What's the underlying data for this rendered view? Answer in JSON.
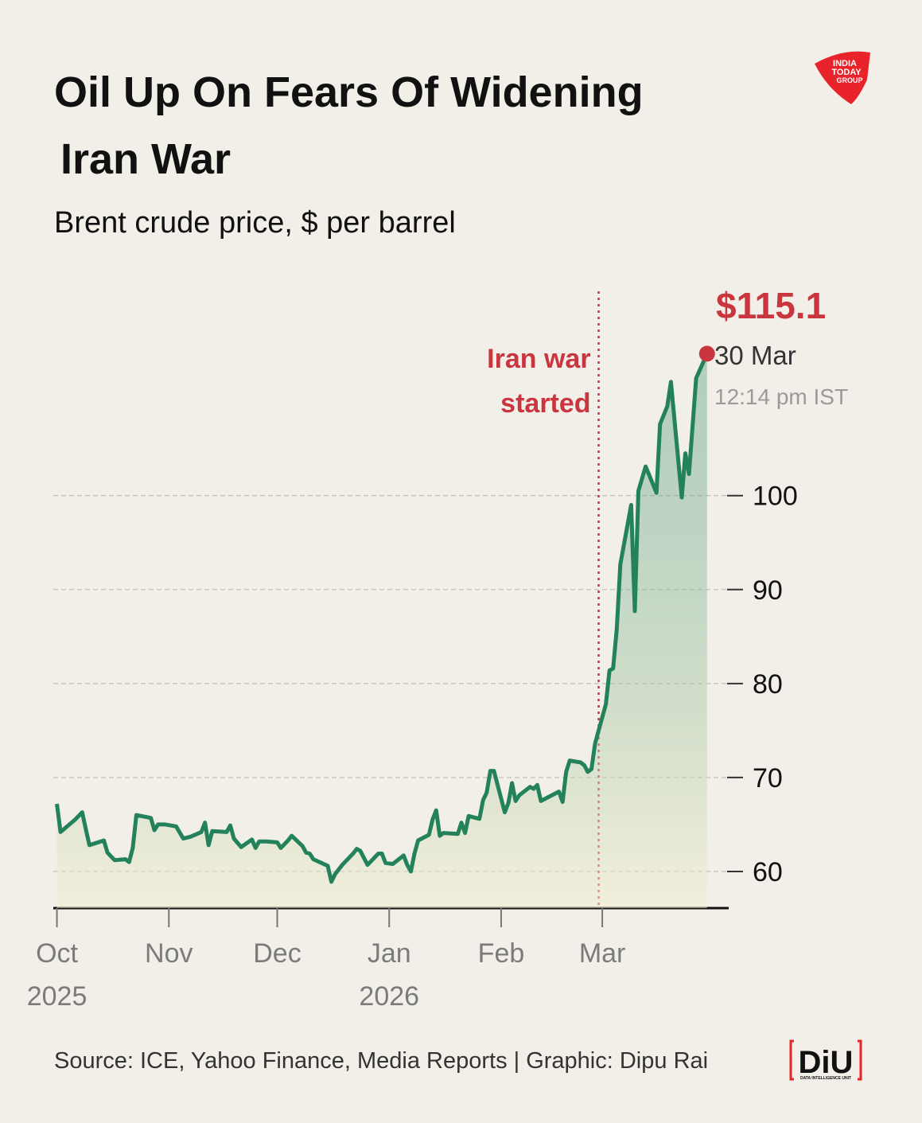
{
  "chart_data": {
    "type": "line",
    "title": [
      "Oil Up On Fears Of Widening",
      "Iran War"
    ],
    "subtitle": "Brent crude price, $ per barrel",
    "source": "Source: ICE, Yahoo Finance, Media Reports | Graphic: Dipu Rai",
    "color": "#23825a",
    "area": true,
    "grid": true,
    "x": [
      "2025-10-01",
      "2025-10-02",
      "2025-10-06",
      "2025-10-08",
      "2025-10-09",
      "2025-10-10",
      "2025-10-14",
      "2025-10-15",
      "2025-10-17",
      "2025-10-20",
      "2025-10-21",
      "2025-10-22",
      "2025-10-23",
      "2025-10-27",
      "2025-10-28",
      "2025-10-29",
      "2025-10-31",
      "2025-11-03",
      "2025-11-05",
      "2025-11-07",
      "2025-11-10",
      "2025-11-11",
      "2025-11-12",
      "2025-11-13",
      "2025-11-17",
      "2025-11-18",
      "2025-11-19",
      "2025-11-21",
      "2025-11-24",
      "2025-11-25",
      "2025-11-26",
      "2025-11-28",
      "2025-12-01",
      "2025-12-02",
      "2025-12-04",
      "2025-12-05",
      "2025-12-08",
      "2025-12-09",
      "2025-12-10",
      "2025-12-11",
      "2025-12-15",
      "2025-12-16",
      "2025-12-17",
      "2025-12-19",
      "2025-12-22",
      "2025-12-23",
      "2025-12-24",
      "2025-12-26",
      "2025-12-29",
      "2025-12-30",
      "2025-12-31",
      "2026-01-02",
      "2026-01-05",
      "2026-01-06",
      "2026-01-07",
      "2026-01-08",
      "2026-01-09",
      "2026-01-12",
      "2026-01-13",
      "2026-01-14",
      "2026-01-15",
      "2026-01-16",
      "2026-01-20",
      "2026-01-21",
      "2026-01-22",
      "2026-01-23",
      "2026-01-26",
      "2026-01-27",
      "2026-01-28",
      "2026-01-29",
      "2026-01-30",
      "2026-02-02",
      "2026-02-03",
      "2026-02-04",
      "2026-02-05",
      "2026-02-06",
      "2026-02-09",
      "2026-02-10",
      "2026-02-11",
      "2026-02-12",
      "2026-02-17",
      "2026-02-18",
      "2026-02-19",
      "2026-02-20",
      "2026-02-23",
      "2026-02-24",
      "2026-02-25",
      "2026-02-26",
      "2026-02-27",
      "2026-03-02",
      "2026-03-03",
      "2026-03-04",
      "2026-03-05",
      "2026-03-06",
      "2026-03-09",
      "2026-03-10",
      "2026-03-11",
      "2026-03-13",
      "2026-03-16",
      "2026-03-17",
      "2026-03-19",
      "2026-03-20",
      "2026-03-23",
      "2026-03-24",
      "2026-03-25",
      "2026-03-27",
      "2026-03-30"
    ],
    "values": [
      67.2,
      64.2,
      65.5,
      66.3,
      64.5,
      62.8,
      63.3,
      62.0,
      61.2,
      61.3,
      61.0,
      62.5,
      66.0,
      65.7,
      64.4,
      65.0,
      65.0,
      64.8,
      63.5,
      63.7,
      64.2,
      65.2,
      62.8,
      64.3,
      64.2,
      64.9,
      63.5,
      62.6,
      63.4,
      62.5,
      63.2,
      63.2,
      63.1,
      62.5,
      63.3,
      63.8,
      62.7,
      62.0,
      61.9,
      61.3,
      60.6,
      58.9,
      59.7,
      60.7,
      61.9,
      62.4,
      62.2,
      60.7,
      61.9,
      61.9,
      60.9,
      60.8,
      61.7,
      60.7,
      60.0,
      61.9,
      63.3,
      63.9,
      65.5,
      66.5,
      63.8,
      64.1,
      64.0,
      65.2,
      64.1,
      65.9,
      65.6,
      67.6,
      68.4,
      70.7,
      70.7,
      66.3,
      67.3,
      69.4,
      67.5,
      68.1,
      69.0,
      68.8,
      69.2,
      67.5,
      68.5,
      67.4,
      70.6,
      71.8,
      71.6,
      71.3,
      70.6,
      70.9,
      73.6,
      77.8,
      81.4,
      81.6,
      85.8,
      92.7,
      99.0,
      87.7,
      100.5,
      103.1,
      100.3,
      107.6,
      109.5,
      112.1,
      99.8,
      104.5,
      102.3,
      112.5,
      115.1
    ],
    "xlim": [
      "2025-09-30",
      "2026-04-05"
    ],
    "xticks": [
      {
        "value": "2025-10-01",
        "label": "Oct"
      },
      {
        "value": "2025-11-01",
        "label": "Nov"
      },
      {
        "value": "2025-12-01",
        "label": "Dec"
      },
      {
        "value": "2026-01-01",
        "label": "Jan"
      },
      {
        "value": "2026-02-01",
        "label": "Feb"
      },
      {
        "value": "2026-03-01",
        "label": "Mar"
      }
    ],
    "x_year_labels": [
      {
        "value": "2025-10-01",
        "label": "2025"
      },
      {
        "value": "2026-01-01",
        "label": "2026"
      }
    ],
    "ylim": [
      56.1,
      117
    ],
    "yticks": [
      60,
      70,
      80,
      90,
      100
    ],
    "event": {
      "x": "2026-02-28",
      "label": [
        "Iran war",
        "started"
      ],
      "color": "#c9363f"
    },
    "end_label": {
      "value_label": "$115.1",
      "date": "30 Mar",
      "time": "12:14 pm IST",
      "color": "#c9363f"
    },
    "logos": {
      "publisher": [
        "INDIA",
        "TODAY",
        "GROUP"
      ],
      "unit": "DiU",
      "unit_sub": "DATA INTELLIGENCE UNIT"
    }
  }
}
